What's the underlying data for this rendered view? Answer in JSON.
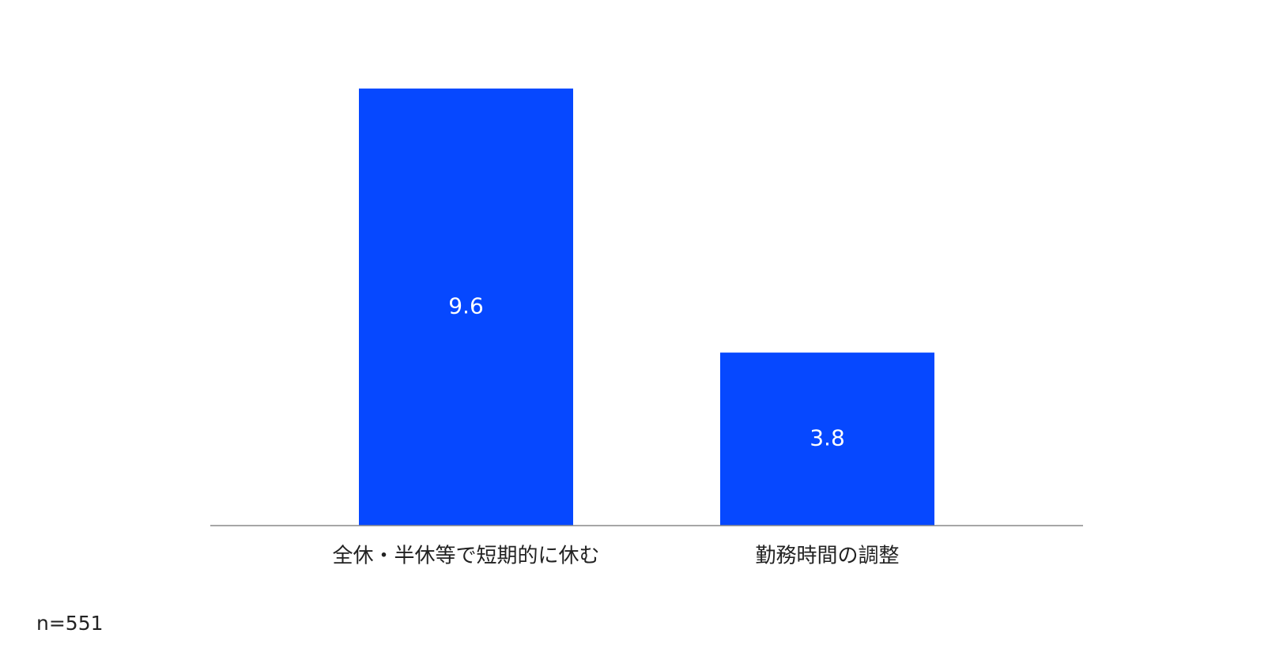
{
  "chart_data": {
    "type": "bar",
    "categories": [
      "全休・半休等で短期的に休む",
      "勤務時間の調整"
    ],
    "values": [
      9.6,
      3.8
    ],
    "color": "#0648ff",
    "ylim": [
      0,
      10
    ],
    "note": "n=551"
  }
}
